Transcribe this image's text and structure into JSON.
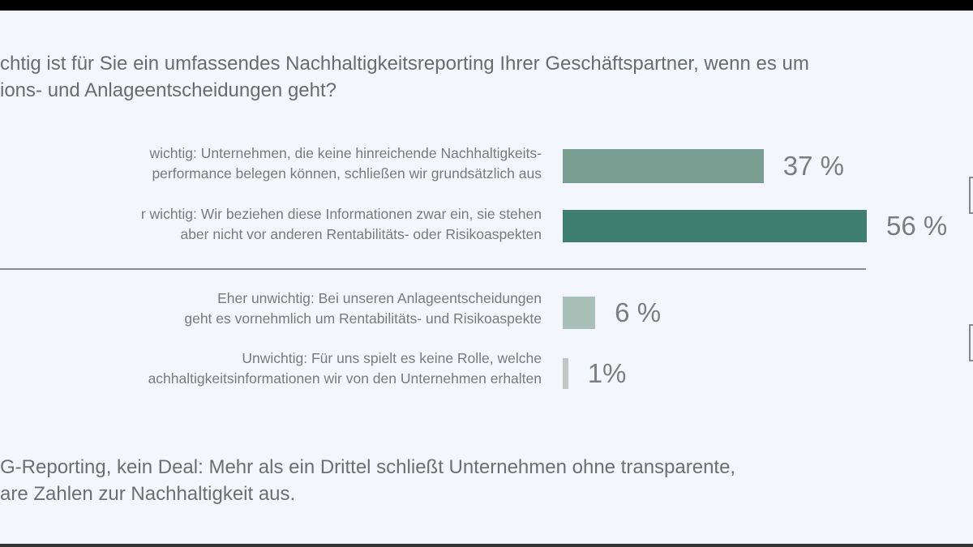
{
  "chart_data": {
    "type": "bar",
    "orientation": "horizontal",
    "title": [
      "chtig ist für Sie ein umfassendes Nachhaltigkeitsreporting Ihrer Geschäftspartner, wenn es um",
      "ions- und Anlageentscheidungen geht?"
    ],
    "categories": [
      [
        "wichtig: Unternehmen, die keine hinreichende Nachhaltigkeits-",
        "performance belegen können, schließen wir grundsätzlich aus"
      ],
      [
        "r wichtig: Wir beziehen diese Informationen zwar ein, sie stehen",
        "aber nicht vor anderen Rentabilitäts- oder Risikoaspekten"
      ],
      [
        "Eher unwichtig: Bei unseren Anlageentscheidungen",
        "geht es vornehmlich um Rentabilitäts- und Risikoaspekte"
      ],
      [
        "Unwichtig: Für uns spielt es keine Rolle, welche",
        "achhaltigkeitsinformationen wir von den Unternehmen erhalten"
      ]
    ],
    "values": [
      37,
      56,
      6,
      1
    ],
    "value_labels": [
      "37 %",
      "56 %",
      "6 %",
      "1%"
    ],
    "colors": [
      "#7a9f92",
      "#3f7f6f",
      "#a8c0b7",
      "#c2c6c6"
    ],
    "unit": "%",
    "grid": false,
    "caption": [
      "G-Reporting, kein Deal: Mehr als ein Drittel schließt Unternehmen ohne transparente,",
      "are Zahlen zur Nachhaltigkeit aus."
    ]
  }
}
